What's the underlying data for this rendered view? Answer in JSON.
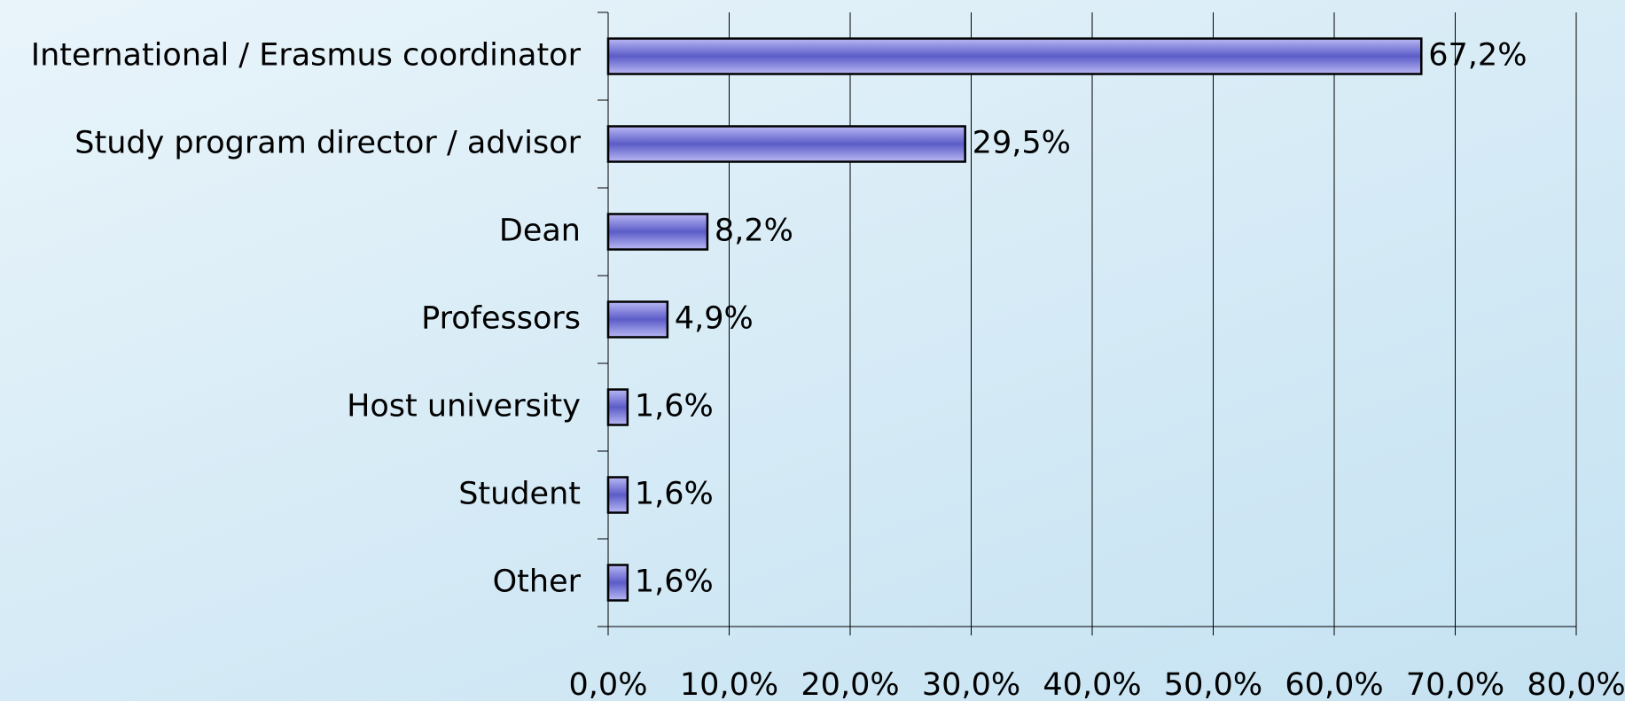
{
  "chart_data": {
    "type": "bar",
    "orientation": "horizontal",
    "categories": [
      "International / Erasmus coordinator",
      "Study program director / advisor",
      "Dean",
      "Professors",
      "Host university",
      "Student",
      "Other"
    ],
    "values": [
      67.2,
      29.5,
      8.2,
      4.9,
      1.6,
      1.6,
      1.6
    ],
    "value_labels": [
      "67,2%",
      "29,5%",
      "8,2%",
      "4,9%",
      "1,6%",
      "1,6%",
      "1,6%"
    ],
    "color": "#7b7be0",
    "xlim": [
      0,
      80
    ],
    "xticks": [
      {
        "value": 0,
        "label": "0,0%"
      },
      {
        "value": 10,
        "label": "10,0%"
      },
      {
        "value": 20,
        "label": "20,0%"
      },
      {
        "value": 30,
        "label": "30,0%"
      },
      {
        "value": 40,
        "label": "40,0%"
      },
      {
        "value": 50,
        "label": "50,0%"
      },
      {
        "value": 60,
        "label": "60,0%"
      },
      {
        "value": 70,
        "label": "70,0%"
      },
      {
        "value": 80,
        "label": "80,0%"
      }
    ],
    "grid": true
  }
}
